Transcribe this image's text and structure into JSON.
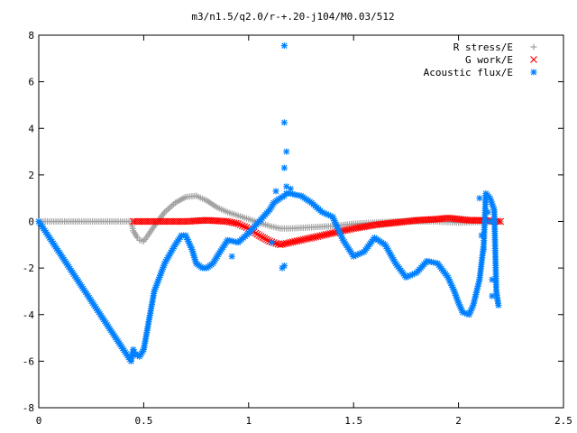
{
  "chart_data": {
    "type": "scatter",
    "title": "m3/n1.5/q2.0/r-+.20-j104/M0.03/512",
    "xlabel": "",
    "ylabel": "",
    "xlim": [
      0,
      2.5
    ],
    "ylim": [
      -8,
      8
    ],
    "x_ticks": [
      "0",
      "0.5",
      "1",
      "1.5",
      "2",
      "2.5"
    ],
    "y_ticks": [
      "-8",
      "-6",
      "-4",
      "-2",
      "0",
      "2",
      "4",
      "6",
      "8"
    ],
    "grid": false,
    "legend_position": "top-right",
    "series": [
      {
        "name": "R stress/E",
        "marker": "plus",
        "color": "#a0a0a0",
        "x": [
          0.0,
          0.44,
          0.45,
          0.47,
          0.48,
          0.5,
          0.52,
          0.55,
          0.6,
          0.65,
          0.7,
          0.75,
          0.8,
          0.85,
          0.9,
          0.95,
          1.0,
          1.05,
          1.1,
          1.15,
          1.2,
          1.3,
          1.4,
          1.5,
          1.6,
          1.7,
          1.8,
          1.9,
          2.0,
          2.1,
          2.2
        ],
        "y": [
          0.0,
          0.0,
          -0.4,
          -0.7,
          -0.8,
          -0.85,
          -0.6,
          -0.2,
          0.4,
          0.8,
          1.05,
          1.1,
          0.9,
          0.6,
          0.4,
          0.25,
          0.1,
          -0.05,
          -0.2,
          -0.3,
          -0.3,
          -0.25,
          -0.2,
          -0.1,
          -0.05,
          0.0,
          0.0,
          0.0,
          -0.05,
          -0.02,
          0.0
        ]
      },
      {
        "name": "G work/E",
        "marker": "cross",
        "color": "#ff0000",
        "x": [
          0.45,
          0.5,
          0.6,
          0.7,
          0.8,
          0.9,
          0.95,
          1.0,
          1.05,
          1.1,
          1.15,
          1.2,
          1.3,
          1.4,
          1.5,
          1.6,
          1.7,
          1.8,
          1.9,
          1.95,
          2.0,
          2.05,
          2.1,
          2.2
        ],
        "y": [
          0.0,
          0.0,
          0.0,
          0.0,
          0.05,
          0.0,
          -0.1,
          -0.3,
          -0.6,
          -0.85,
          -1.0,
          -0.9,
          -0.7,
          -0.5,
          -0.3,
          -0.15,
          -0.05,
          0.05,
          0.1,
          0.15,
          0.1,
          0.05,
          0.05,
          0.0
        ]
      },
      {
        "name": "Acoustic flux/E",
        "marker": "star",
        "color": "#0080ff",
        "x": [
          0.0,
          0.44,
          0.45,
          0.46,
          0.48,
          0.5,
          0.52,
          0.55,
          0.6,
          0.65,
          0.68,
          0.7,
          0.73,
          0.75,
          0.78,
          0.8,
          0.83,
          0.85,
          0.9,
          0.95,
          1.0,
          1.05,
          1.1,
          1.12,
          1.15,
          1.17,
          1.18,
          1.2,
          1.22,
          1.25,
          1.3,
          1.35,
          1.4,
          1.42,
          1.45,
          1.5,
          1.55,
          1.6,
          1.65,
          1.7,
          1.75,
          1.8,
          1.85,
          1.9,
          1.95,
          1.98,
          2.0,
          2.02,
          2.05,
          2.07,
          2.1,
          2.12,
          2.13,
          2.15,
          2.17,
          2.18,
          2.19
        ],
        "y": [
          0.0,
          -6.0,
          -5.5,
          -5.7,
          -5.8,
          -5.5,
          -4.5,
          -3.0,
          -1.8,
          -1.0,
          -0.6,
          -0.6,
          -1.2,
          -1.8,
          -2.0,
          -2.0,
          -1.8,
          -1.5,
          -0.8,
          -0.9,
          -0.5,
          0.0,
          0.5,
          0.8,
          1.0,
          1.1,
          1.2,
          1.2,
          1.15,
          1.1,
          0.8,
          0.4,
          0.2,
          -0.2,
          -0.8,
          -1.5,
          -1.3,
          -0.7,
          -1.0,
          -1.8,
          -2.4,
          -2.2,
          -1.7,
          -1.8,
          -2.4,
          -3.0,
          -3.5,
          -3.9,
          -4.0,
          -3.6,
          -2.5,
          -1.0,
          1.2,
          1.0,
          0.5,
          -3.0,
          -3.6
        ]
      },
      {
        "name": "",
        "marker": "star",
        "color": "#0080ff",
        "x": [
          1.17,
          1.17,
          1.17,
          1.18,
          1.18,
          1.16,
          1.17,
          1.18,
          0.92,
          1.11,
          1.2,
          1.13,
          2.1,
          2.11,
          2.12,
          2.16,
          2.16,
          2.14,
          2.15
        ],
        "y": [
          7.55,
          4.25,
          2.3,
          3.0,
          1.5,
          -2.0,
          -1.9,
          1.2,
          -1.5,
          -0.9,
          1.4,
          1.3,
          1.0,
          -0.6,
          -1.2,
          -2.5,
          -3.2,
          0.4,
          0.0
        ]
      }
    ]
  }
}
